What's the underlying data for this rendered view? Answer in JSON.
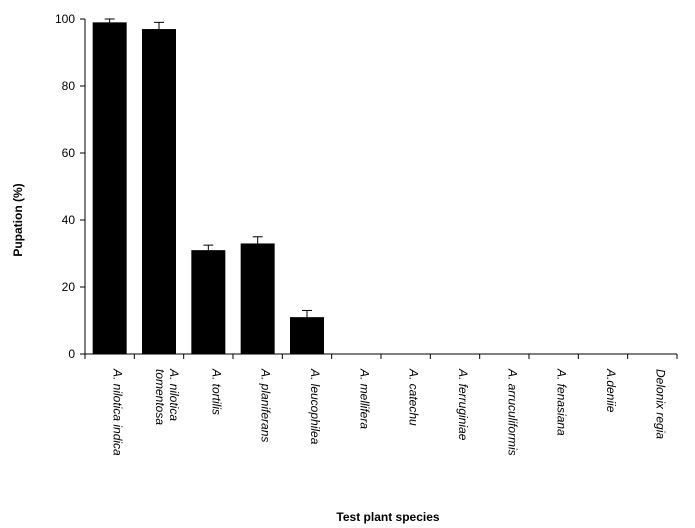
{
  "chart_data": {
    "type": "bar",
    "title": "",
    "xlabel": "Test plant species",
    "ylabel": "Pupation (%)",
    "ylim": [
      0,
      100
    ],
    "yticks": [
      0,
      20,
      40,
      60,
      80,
      100
    ],
    "grid": false,
    "legend": "none",
    "bar_color": "#000000",
    "categories": [
      [
        "A. nilotica indica"
      ],
      [
        "A. nilotica",
        "tomentosa"
      ],
      [
        "A. tortilis"
      ],
      [
        "A. planiferans"
      ],
      [
        "A. leucophilea"
      ],
      [
        "A. mellifera"
      ],
      [
        "A. catechu"
      ],
      [
        "A. ferruginiae"
      ],
      [
        "A. arruculiformis"
      ],
      [
        "A. fenasiana"
      ],
      [
        "A.deniie"
      ],
      [
        "Delonix  regia"
      ]
    ],
    "values": [
      99,
      97,
      31,
      33,
      11,
      0,
      0,
      0,
      0,
      0,
      0,
      0
    ],
    "errors": [
      1,
      2,
      1.5,
      2,
      2,
      0,
      0,
      0,
      0,
      0,
      0,
      0
    ]
  }
}
